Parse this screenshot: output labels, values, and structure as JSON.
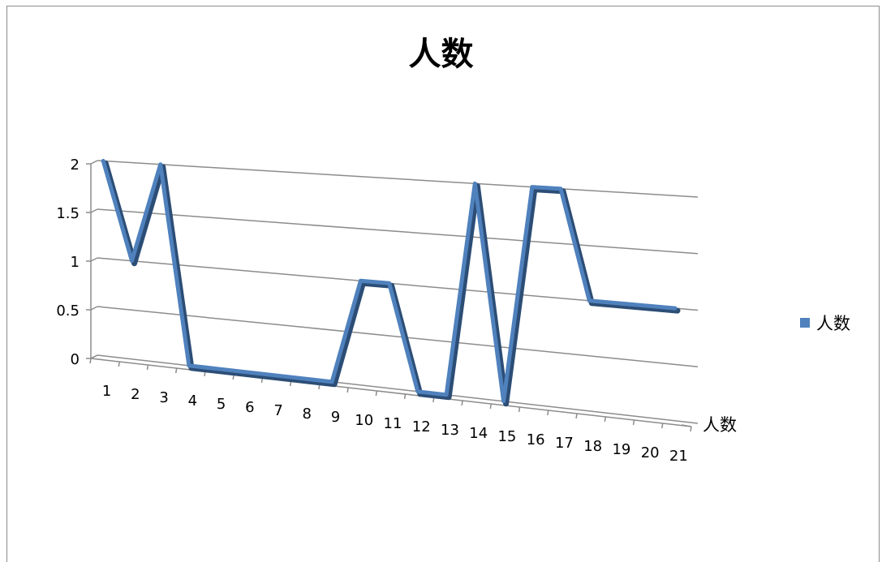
{
  "chart_data": {
    "type": "line",
    "title": "人数",
    "categories": [
      "1",
      "2",
      "3",
      "4",
      "5",
      "6",
      "7",
      "8",
      "9",
      "10",
      "11",
      "12",
      "13",
      "14",
      "15",
      "16",
      "17",
      "18",
      "19",
      "20",
      "21"
    ],
    "series": [
      {
        "name": "人数",
        "values": [
          2,
          1,
          2,
          0,
          0,
          0,
          0,
          0,
          0,
          1,
          1,
          0,
          0,
          2,
          0,
          2,
          2,
          1,
          1,
          1,
          1
        ]
      }
    ],
    "yticks": [
      "0",
      "0.5",
      "1",
      "1.5",
      "2"
    ],
    "ylim": [
      0,
      2
    ],
    "depth_axis_label": "人数",
    "legend_position": "right",
    "grid": true,
    "colors": {
      "series": "#4f81bd",
      "grid": "#8c8c8c"
    }
  }
}
